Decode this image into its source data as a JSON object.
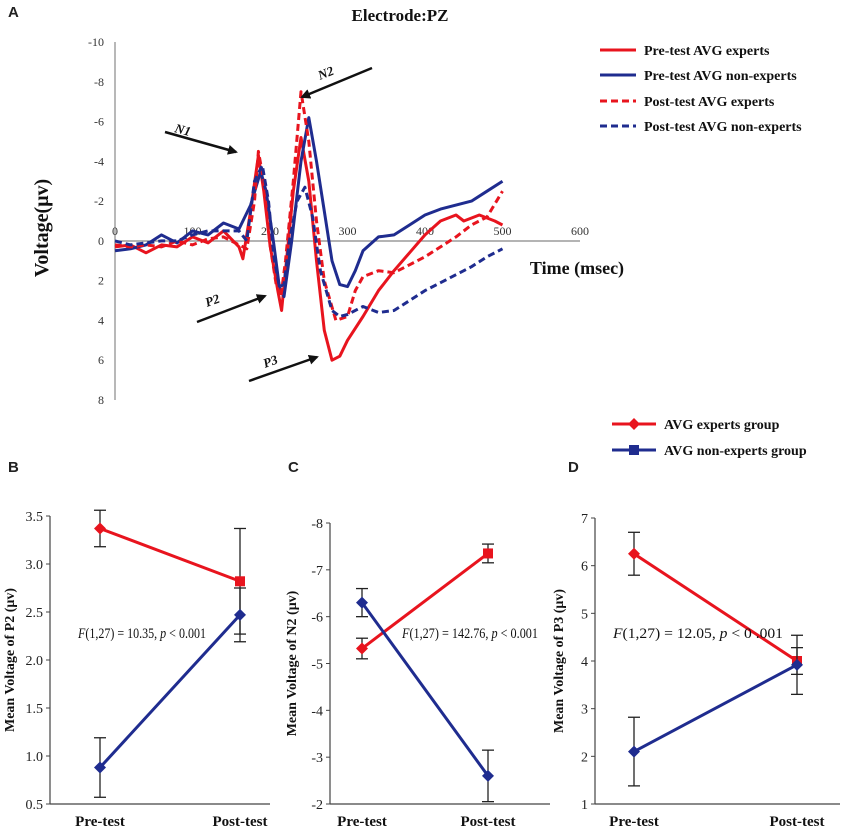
{
  "colors": {
    "red": "#e8141e",
    "blue": "#1f2c8f",
    "axis": "#888888",
    "arrow": "#111111"
  },
  "panels": {
    "a": "A",
    "b": "B",
    "c": "C",
    "d": "D"
  },
  "chart_data": [
    {
      "id": "A",
      "type": "line",
      "title": "Electrode:PZ",
      "xlabel": "Time (msec)",
      "ylabel": "Voltage(μv)",
      "xlim": [
        0,
        600
      ],
      "ylim": [
        -10,
        8
      ],
      "y_inverted": true,
      "xticks": [
        "0",
        "100",
        "200",
        "300",
        "400",
        "500",
        "600"
      ],
      "yticks": [
        "-10",
        "-8",
        "-6",
        "-4",
        "-2",
        "0",
        "2",
        "4",
        "6",
        "8"
      ],
      "series": [
        {
          "name": "Pre-test AVG experts",
          "color": "#e8141e",
          "dash": false,
          "points": [
            [
              0,
              0.3
            ],
            [
              20,
              0.2
            ],
            [
              40,
              0.6
            ],
            [
              60,
              0.2
            ],
            [
              80,
              0.3
            ],
            [
              100,
              -0.2
            ],
            [
              120,
              0.1
            ],
            [
              140,
              -0.5
            ],
            [
              160,
              0.3
            ],
            [
              165,
              0.9
            ],
            [
              175,
              -1.5
            ],
            [
              185,
              -4.3
            ],
            [
              192,
              -2.5
            ],
            [
              200,
              0.2
            ],
            [
              210,
              2.5
            ],
            [
              215,
              3.5
            ],
            [
              220,
              1.5
            ],
            [
              230,
              -2.5
            ],
            [
              240,
              -5.2
            ],
            [
              250,
              -3
            ],
            [
              260,
              1
            ],
            [
              270,
              4.5
            ],
            [
              280,
              6
            ],
            [
              290,
              5.8
            ],
            [
              300,
              5
            ],
            [
              320,
              3.8
            ],
            [
              340,
              2.5
            ],
            [
              360,
              1.5
            ],
            [
              380,
              0.6
            ],
            [
              400,
              -0.3
            ],
            [
              420,
              -1
            ],
            [
              440,
              -1.3
            ],
            [
              450,
              -1
            ],
            [
              470,
              -1.3
            ],
            [
              490,
              -1
            ],
            [
              500,
              -0.8
            ]
          ]
        },
        {
          "name": "Pre-test AVG non-experts",
          "color": "#1f2c8f",
          "dash": false,
          "points": [
            [
              0,
              0.5
            ],
            [
              20,
              0.4
            ],
            [
              40,
              0.2
            ],
            [
              60,
              -0.3
            ],
            [
              80,
              0.1
            ],
            [
              100,
              -0.5
            ],
            [
              120,
              -0.3
            ],
            [
              140,
              -0.9
            ],
            [
              160,
              -0.6
            ],
            [
              175,
              -1.8
            ],
            [
              188,
              -3.5
            ],
            [
              195,
              -2.5
            ],
            [
              205,
              0.2
            ],
            [
              212,
              2.3
            ],
            [
              218,
              2.8
            ],
            [
              228,
              0
            ],
            [
              240,
              -4
            ],
            [
              250,
              -6.2
            ],
            [
              260,
              -4
            ],
            [
              270,
              -1.5
            ],
            [
              280,
              1
            ],
            [
              290,
              2.2
            ],
            [
              300,
              2.3
            ],
            [
              310,
              1.5
            ],
            [
              320,
              0.5
            ],
            [
              340,
              -0.2
            ],
            [
              360,
              -0.3
            ],
            [
              380,
              -0.8
            ],
            [
              400,
              -1.3
            ],
            [
              420,
              -1.6
            ],
            [
              440,
              -1.8
            ],
            [
              460,
              -2
            ],
            [
              480,
              -2.5
            ],
            [
              500,
              -3
            ]
          ]
        },
        {
          "name": "Post-test AVG experts",
          "color": "#e8141e",
          "dash": true,
          "points": [
            [
              0,
              0.2
            ],
            [
              20,
              0.3
            ],
            [
              40,
              0.2
            ],
            [
              60,
              0.3
            ],
            [
              80,
              0
            ],
            [
              100,
              0.2
            ],
            [
              120,
              -0.1
            ],
            [
              140,
              -0.2
            ],
            [
              160,
              0.2
            ],
            [
              170,
              0.4
            ],
            [
              180,
              -2
            ],
            [
              185,
              -4.5
            ],
            [
              192,
              -3
            ],
            [
              200,
              0.2
            ],
            [
              208,
              2.2
            ],
            [
              214,
              2.8
            ],
            [
              220,
              1
            ],
            [
              230,
              -3
            ],
            [
              240,
              -7.5
            ],
            [
              250,
              -5
            ],
            [
              260,
              -1
            ],
            [
              270,
              2
            ],
            [
              285,
              4
            ],
            [
              300,
              3.8
            ],
            [
              310,
              2.5
            ],
            [
              320,
              1.8
            ],
            [
              340,
              1.5
            ],
            [
              360,
              1.6
            ],
            [
              380,
              1.2
            ],
            [
              400,
              0.8
            ],
            [
              420,
              0.3
            ],
            [
              440,
              -0.2
            ],
            [
              460,
              -0.8
            ],
            [
              480,
              -1.2
            ],
            [
              500,
              -2.5
            ]
          ]
        },
        {
          "name": "Post-test AVG non-experts",
          "color": "#1f2c8f",
          "dash": true,
          "points": [
            [
              0,
              0
            ],
            [
              20,
              0.2
            ],
            [
              40,
              0.1
            ],
            [
              60,
              0
            ],
            [
              80,
              0
            ],
            [
              100,
              -0.3
            ],
            [
              120,
              -0.5
            ],
            [
              140,
              -0.5
            ],
            [
              160,
              -0.5
            ],
            [
              170,
              0
            ],
            [
              180,
              -3
            ],
            [
              190,
              -3.8
            ],
            [
              198,
              -2
            ],
            [
              205,
              0.8
            ],
            [
              212,
              2.3
            ],
            [
              218,
              2.2
            ],
            [
              225,
              0
            ],
            [
              235,
              -2
            ],
            [
              245,
              -2.7
            ],
            [
              255,
              -1.2
            ],
            [
              265,
              1.5
            ],
            [
              280,
              3.5
            ],
            [
              290,
              3.8
            ],
            [
              300,
              3.7
            ],
            [
              320,
              3.3
            ],
            [
              340,
              3.6
            ],
            [
              360,
              3.5
            ],
            [
              380,
              3
            ],
            [
              400,
              2.5
            ],
            [
              420,
              2.1
            ],
            [
              440,
              1.7
            ],
            [
              460,
              1.3
            ],
            [
              480,
              0.8
            ],
            [
              500,
              0.4
            ]
          ]
        }
      ],
      "annotations": [
        "N1",
        "N2",
        "P2",
        "P3"
      ]
    },
    {
      "id": "B",
      "type": "line",
      "categories": [
        "Pre-test",
        "Post-test"
      ],
      "ylabel": "Mean Voltage of P2 (μv)",
      "ylim": [
        0.5,
        3.5
      ],
      "yticks": [
        "3.5",
        "3.0",
        "2.5",
        "2.0",
        "1.5",
        "1.0",
        "0.5"
      ],
      "annotation": {
        "f": "F",
        "rest": "(1,27) = 10.35, ",
        "p": "p",
        "cmp": " < 0.001"
      },
      "series": [
        {
          "name": "AVG experts group",
          "values": [
            3.37,
            2.82
          ],
          "errors": [
            0.19,
            0.55
          ]
        },
        {
          "name": "AVG non-experts group",
          "values": [
            0.88,
            2.47
          ],
          "errors": [
            0.31,
            0.28
          ]
        }
      ]
    },
    {
      "id": "C",
      "type": "line",
      "categories": [
        "Pre-test",
        "Post-test"
      ],
      "ylabel": "Mean Voltage of N2 (μv)",
      "ylim": [
        -8,
        -2
      ],
      "y_inverted": true,
      "yticks": [
        "-8",
        "-7",
        "-6",
        "-5",
        "-4",
        "-3",
        "-2"
      ],
      "annotation": {
        "f": "F",
        "rest": "(1,27) = 142.76, ",
        "p": "p",
        "cmp": " < 0.001"
      },
      "series": [
        {
          "name": "AVG experts group",
          "values": [
            -5.32,
            -7.35
          ],
          "errors": [
            0.22,
            0.2
          ]
        },
        {
          "name": "AVG non-experts group",
          "values": [
            -6.3,
            -2.6
          ],
          "errors": [
            0.3,
            0.55
          ]
        }
      ]
    },
    {
      "id": "D",
      "type": "line",
      "categories": [
        "Pre-test",
        "Post-test"
      ],
      "ylabel": "Mean Voltage of P3 (μv)",
      "ylim": [
        1,
        7
      ],
      "yticks": [
        "7",
        "6",
        "5",
        "4",
        "3",
        "2",
        "1"
      ],
      "annotation": {
        "f": "F",
        "rest": "(1,27) = 12.05, ",
        "p": "p",
        "cmp": " < 0 .001"
      },
      "series": [
        {
          "name": "AVG experts group",
          "values": [
            6.25,
            4.0
          ],
          "errors": [
            0.45,
            0.28
          ]
        },
        {
          "name": "AVG non-experts group",
          "values": [
            2.1,
            3.92
          ],
          "errors": [
            0.72,
            0.62
          ]
        }
      ]
    }
  ],
  "legend_bottom": [
    "AVG experts group",
    "AVG non-experts group"
  ]
}
